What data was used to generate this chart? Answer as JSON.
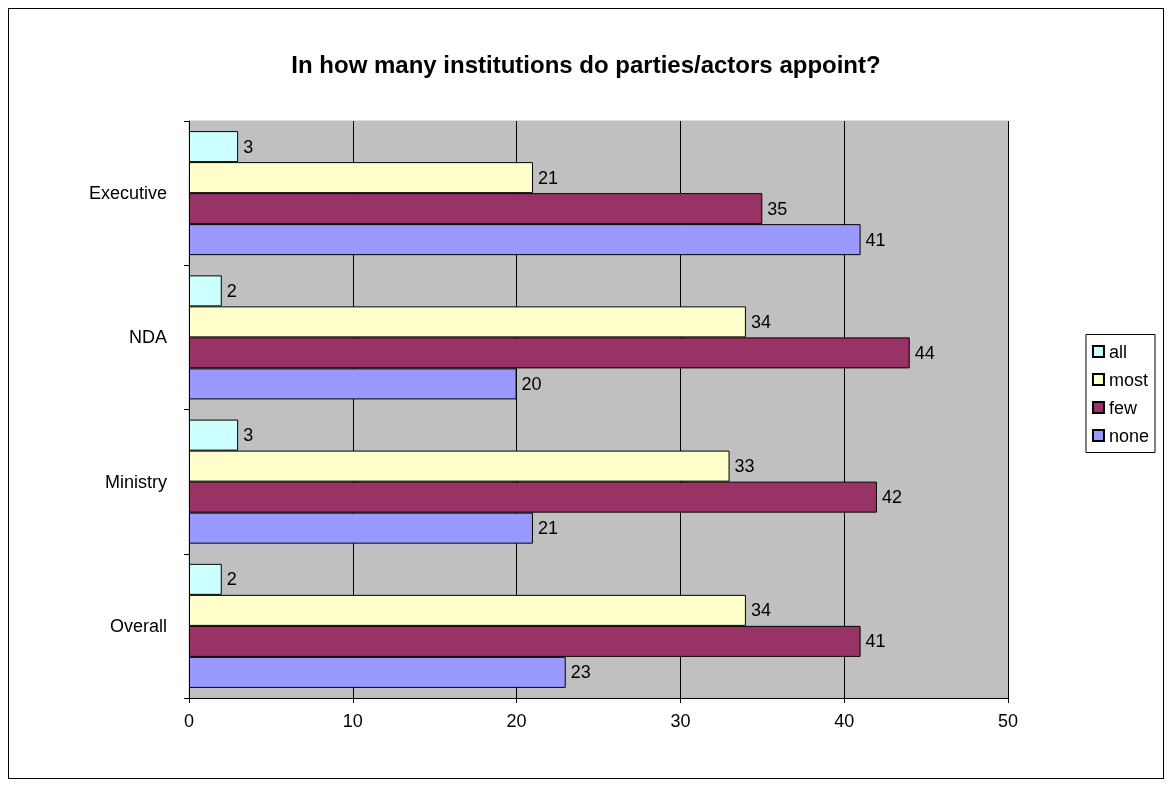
{
  "chart_data": {
    "type": "bar",
    "orientation": "horizontal",
    "title": "In how many institutions do parties/actors appoint?",
    "categories": [
      "Executive",
      "NDA",
      "Ministry",
      "Overall"
    ],
    "series": [
      {
        "name": "all",
        "color": "#ccffff",
        "values": [
          3,
          2,
          3,
          2
        ]
      },
      {
        "name": "most",
        "color": "#ffffcc",
        "values": [
          21,
          34,
          33,
          34
        ]
      },
      {
        "name": "few",
        "color": "#993366",
        "values": [
          35,
          44,
          42,
          41
        ]
      },
      {
        "name": "none",
        "color": "#9999ff",
        "values": [
          41,
          20,
          21,
          23
        ]
      }
    ],
    "xlim": [
      0,
      50
    ],
    "xticks": [
      0,
      10,
      20,
      30,
      40,
      50
    ],
    "grid": "x",
    "legend": "right",
    "data_labels": true
  }
}
